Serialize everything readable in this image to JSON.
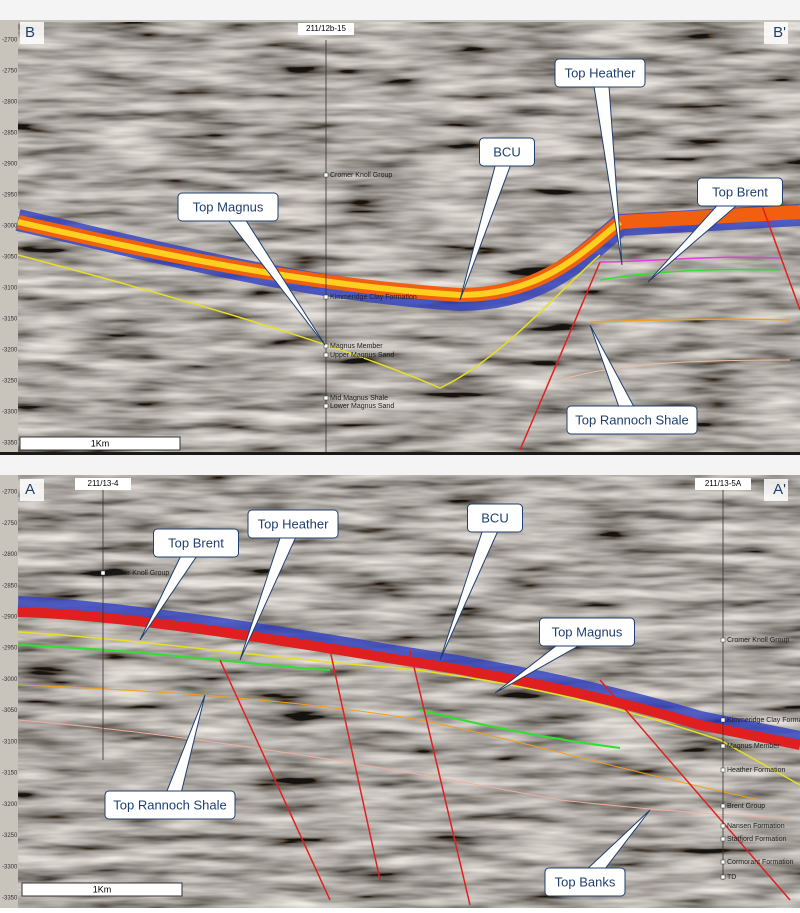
{
  "panels": [
    {
      "start_label": "B",
      "end_label": "B'",
      "wells": [
        "211/12b-15"
      ],
      "scale_bar": "1Km",
      "depth_ticks": [
        -2700,
        -2750,
        -2800,
        -2850,
        -2900,
        -2950,
        -3000,
        -3050,
        -3100,
        -3150,
        -3200,
        -3250,
        -3300,
        -3350
      ],
      "formations": [
        "Cromer Knoll Group",
        "Kimmeridge Clay Formation",
        "Magnus Member",
        "Upper Magnus Sand",
        "Mid Magnus Shale",
        "Lower Magnus Sand"
      ],
      "callouts": [
        "Top Magnus",
        "BCU",
        "Top Heather",
        "Top Brent",
        "Top Rannoch Shale"
      ]
    },
    {
      "start_label": "A",
      "end_label": "A'",
      "wells": [
        "211/13-4",
        "211/13-5A"
      ],
      "scale_bar": "1Km",
      "depth_ticks": [
        -2700,
        -2750,
        -2800,
        -2850,
        -2900,
        -2950,
        -3000,
        -3050,
        -3100,
        -3150,
        -3200,
        -3250,
        -3300,
        -3350
      ],
      "formations": [
        "Cromer Knoll Group",
        "Cromer Knoll Group",
        "Kimmeridge Clay Formation",
        "Magnus Member",
        "Heather Formation",
        "Brent Group",
        "Nansen Formation",
        "Statfjord Formation",
        "Cormorant Formation",
        "TD"
      ],
      "callouts": [
        "Top Brent",
        "Top Heather",
        "BCU",
        "Top Magnus",
        "Top Rannoch Shale",
        "Top Banks"
      ]
    }
  ]
}
